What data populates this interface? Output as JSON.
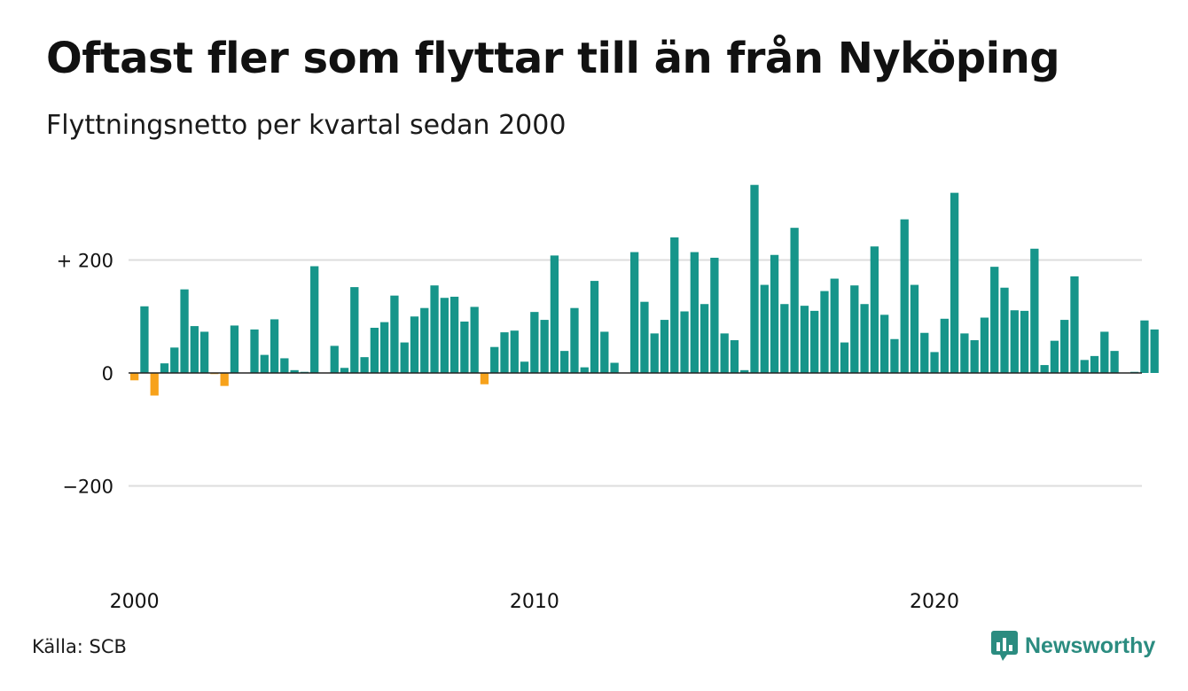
{
  "header": {
    "title": "Oftast fler som flyttar till än från Nyköping",
    "subtitle": "Flyttningsnetto per kvartal sedan 2000"
  },
  "footer": {
    "source": "Källa: SCB",
    "brand": "Newsworthy"
  },
  "colors": {
    "positive": "#16958a",
    "negative": "#f7a21b",
    "grid": "#dddddd",
    "axis": "#222222",
    "brand": "#2b8c80"
  },
  "chart_data": {
    "type": "bar",
    "title": "Oftast fler som flyttar till än från Nyköping",
    "subtitle": "Flyttningsnetto per kvartal sedan 2000",
    "xlabel": "",
    "ylabel": "",
    "x_ticks": [
      "2000",
      "2010",
      "2020"
    ],
    "y_ticks": [
      {
        "value": 200,
        "label": "+ 200"
      },
      {
        "value": 0,
        "label": "0"
      },
      {
        "value": -200,
        "label": "−200"
      }
    ],
    "ylim": [
      -360,
      330
    ],
    "grid": true,
    "legend": "none",
    "categories": [
      "2000 Q1",
      "2000 Q2",
      "2000 Q3",
      "2000 Q4",
      "2001 Q1",
      "2001 Q2",
      "2001 Q3",
      "2001 Q4",
      "2002 Q1",
      "2002 Q2",
      "2002 Q3",
      "2002 Q4",
      "2003 Q1",
      "2003 Q2",
      "2003 Q3",
      "2003 Q4",
      "2004 Q1",
      "2004 Q2",
      "2004 Q3",
      "2004 Q4",
      "2005 Q1",
      "2005 Q2",
      "2005 Q3",
      "2005 Q4",
      "2006 Q1",
      "2006 Q2",
      "2006 Q3",
      "2006 Q4",
      "2007 Q1",
      "2007 Q2",
      "2007 Q3",
      "2007 Q4",
      "2008 Q1",
      "2008 Q2",
      "2008 Q3",
      "2008 Q4",
      "2009 Q1",
      "2009 Q2",
      "2009 Q3",
      "2009 Q4",
      "2010 Q1",
      "2010 Q2",
      "2010 Q3",
      "2010 Q4",
      "2011 Q1",
      "2011 Q2",
      "2011 Q3",
      "2011 Q4",
      "2012 Q1",
      "2012 Q2",
      "2012 Q3",
      "2012 Q4",
      "2013 Q1",
      "2013 Q2",
      "2013 Q3",
      "2013 Q4",
      "2014 Q1",
      "2014 Q2",
      "2014 Q3",
      "2014 Q4",
      "2015 Q1",
      "2015 Q2",
      "2015 Q3",
      "2015 Q4",
      "2016 Q1",
      "2016 Q2",
      "2016 Q3",
      "2016 Q4",
      "2017 Q1",
      "2017 Q2",
      "2017 Q3",
      "2017 Q4",
      "2018 Q1",
      "2018 Q2",
      "2018 Q3",
      "2018 Q4",
      "2019 Q1",
      "2019 Q2",
      "2019 Q3",
      "2019 Q4",
      "2020 Q1",
      "2020 Q2",
      "2020 Q3",
      "2020 Q4",
      "2021 Q1",
      "2021 Q2",
      "2021 Q3",
      "2021 Q4",
      "2022 Q1",
      "2022 Q2",
      "2022 Q3",
      "2022 Q4",
      "2023 Q1",
      "2023 Q2",
      "2023 Q3",
      "2023 Q4",
      "2024 Q1",
      "2024 Q2",
      "2024 Q3",
      "2024 Q4",
      "2025 Q1",
      "2025 Q2",
      "2025 Q3"
    ],
    "values": [
      -13,
      118,
      -40,
      17,
      45,
      148,
      83,
      73,
      -2,
      -23,
      84,
      0,
      77,
      32,
      95,
      26,
      5,
      2,
      189,
      0,
      48,
      9,
      152,
      28,
      80,
      90,
      137,
      54,
      100,
      115,
      155,
      133,
      135,
      91,
      117,
      -20,
      46,
      72,
      75,
      20,
      108,
      94,
      208,
      39,
      115,
      10,
      163,
      73,
      18,
      0,
      214,
      126,
      70,
      94,
      240,
      109,
      214,
      122,
      204,
      70,
      58,
      5,
      333,
      156,
      209,
      122,
      257,
      119,
      110,
      145,
      167,
      54,
      155,
      122,
      224,
      103,
      60,
      272,
      156,
      71,
      37,
      96,
      319,
      70,
      58,
      98,
      188,
      151,
      111,
      110,
      220,
      14,
      57,
      94,
      171,
      23,
      30,
      73,
      39,
      0,
      2,
      93,
      77
    ]
  }
}
